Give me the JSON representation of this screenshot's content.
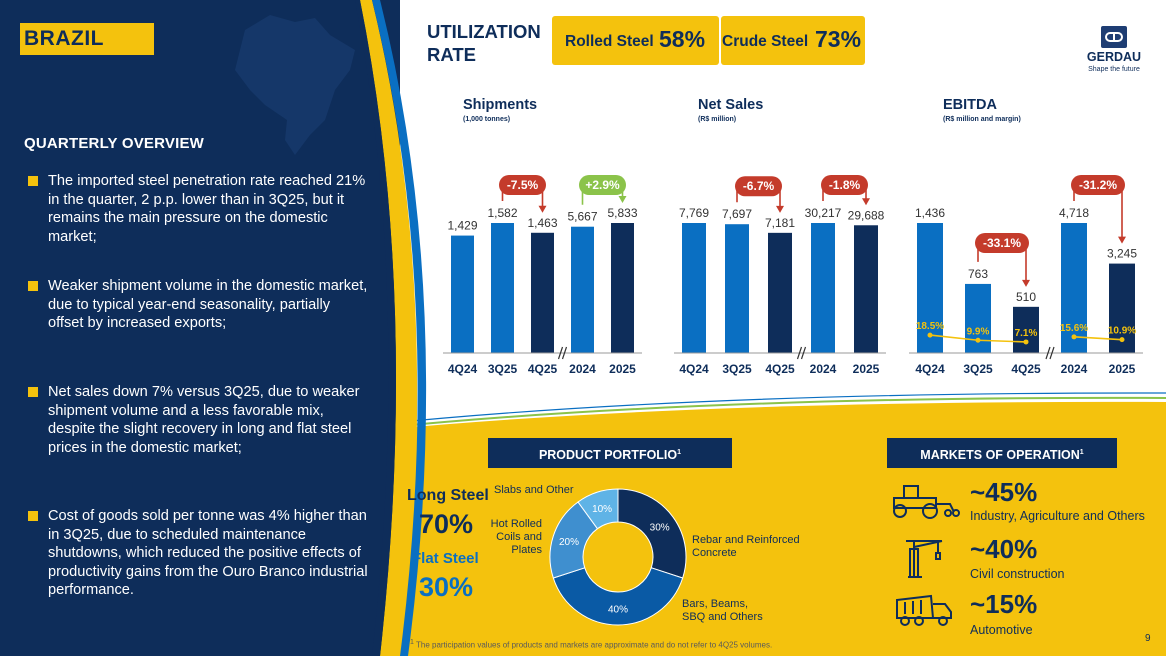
{
  "country": "BRAZIL",
  "overview": {
    "title": "QUARTERLY OVERVIEW",
    "bullets": [
      "The imported steel penetration rate reached 21% in the quarter, 2 p.p. lower than in 3Q25, but it remains the main pressure on the domestic market;",
      "Weaker shipment volume in the domestic market, due to typical year-end seasonality, partially offset by increased exports;",
      "Net sales down 7% versus 3Q25, due to weaker shipment volume and a less favorable mix, despite the slight recovery in long and flat steel prices in the domestic market;",
      "Cost of goods sold per tonne was 4% higher than in 3Q25, due to scheduled maintenance shutdowns, which reduced the positive effects of productivity gains from the Ouro Branco industrial performance."
    ]
  },
  "utilization": {
    "title_line1": "UTILIZATION",
    "title_line2": "RATE",
    "rolled_label": "Rolled Steel",
    "rolled_value": "58%",
    "crude_label": "Crude Steel",
    "crude_value": "73%"
  },
  "logo": {
    "name": "GERDAU",
    "tagline": "Shape the future"
  },
  "colors": {
    "navy": "#0e2d5a",
    "blue": "#0a6fc2",
    "yellow": "#f4c20d",
    "red": "#c43b2b",
    "green": "#8bc34a"
  },
  "chart_data": [
    {
      "type": "bar",
      "title": "Shipments",
      "subtitle": "(1,000 tonnes)",
      "categories": [
        "4Q24",
        "3Q25",
        "4Q25",
        "2024",
        "2025"
      ],
      "values": [
        1429,
        1582,
        1463,
        5667,
        5833
      ],
      "labels": [
        "1,429",
        "1,582",
        "1,463",
        "5,667",
        "5,833"
      ],
      "changes": [
        {
          "text": "-7.5%",
          "from": 1,
          "to": 2,
          "color": "red"
        },
        {
          "text": "+2.9%",
          "from": 3,
          "to": 4,
          "color": "green"
        }
      ]
    },
    {
      "type": "bar",
      "title": "Net Sales",
      "subtitle": "(R$ million)",
      "categories": [
        "4Q24",
        "3Q25",
        "4Q25",
        "2024",
        "2025"
      ],
      "values": [
        7769,
        7697,
        7181,
        30217,
        29688
      ],
      "labels": [
        "7,769",
        "7,697",
        "7,181",
        "30,217",
        "29,688"
      ],
      "changes": [
        {
          "text": "-6.7%",
          "from": 1,
          "to": 2,
          "color": "red"
        },
        {
          "text": "-1.8%",
          "from": 3,
          "to": 4,
          "color": "red"
        }
      ]
    },
    {
      "type": "bar",
      "title": "EBITDA",
      "subtitle": "(R$ million and margin)",
      "categories": [
        "4Q24",
        "3Q25",
        "4Q25",
        "2024",
        "2025"
      ],
      "values": [
        1436,
        763,
        510,
        4718,
        3245
      ],
      "labels": [
        "1,436",
        "763",
        "510",
        "4,718",
        "3,245"
      ],
      "margins": [
        "18.5%",
        "9.9%",
        "7.1%",
        "15.6%",
        "10.9%"
      ],
      "margin_values": [
        18.5,
        9.9,
        7.1,
        15.6,
        10.9
      ],
      "changes": [
        {
          "text": "-33.1%",
          "from": 1,
          "to": 2,
          "color": "red"
        },
        {
          "text": "-31.2%",
          "from": 3,
          "to": 4,
          "color": "red"
        }
      ]
    },
    {
      "type": "pie",
      "title": "PRODUCT PORTFOLIO",
      "categories": [
        "Rebar and Reinforced Concrete",
        "Bars, Beams, SBQ and Others",
        "Hot Rolled Coils and Plates",
        "Slabs and Other"
      ],
      "values": [
        30,
        40,
        20,
        10
      ],
      "labels": [
        "30%",
        "40%",
        "20%",
        "10%"
      ]
    }
  ],
  "portfolio": {
    "header": "PRODUCT PORTFOLIO",
    "long_label": "Long Steel",
    "long_value": "70%",
    "flat_label": "Flat Steel",
    "flat_value": "30%",
    "slice_names": [
      "Rebar and Reinforced Concrete",
      "Bars, Beams, SBQ and Others",
      "Hot Rolled Coils and Plates",
      "Slabs and Other"
    ]
  },
  "markets": {
    "header": "MARKETS OF OPERATION",
    "items": [
      {
        "pct": "~45%",
        "label": "Industry, Agriculture and Others",
        "icon": "tractor-icon"
      },
      {
        "pct": "~40%",
        "label": "Civil construction",
        "icon": "crane-icon"
      },
      {
        "pct": "~15%",
        "label": "Automotive",
        "icon": "truck-icon"
      }
    ]
  },
  "footnote_sup": "1",
  "footnote": "The participation values of products and markets are approximate and do not refer to 4Q25 volumes.",
  "page_number": "9"
}
